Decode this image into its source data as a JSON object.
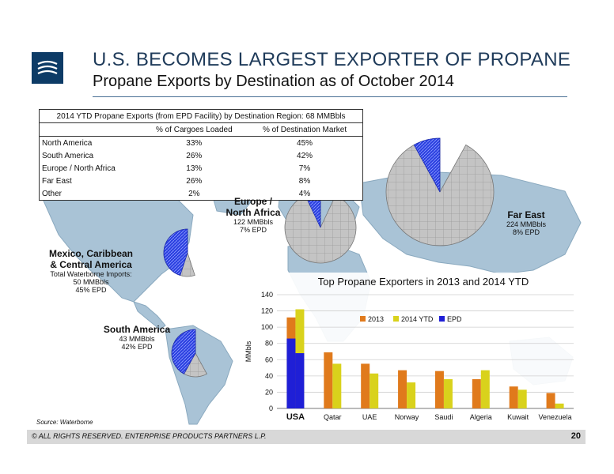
{
  "slide": {
    "title": "U.S. BECOMES LARGEST EXPORTER OF PROPANE",
    "subtitle": "Propane Exports by Destination as of October 2014",
    "source": "Source:  Waterborne",
    "footer": "© ALL RIGHTS RESERVED. ENTERPRISE PRODUCTS PARTNERS L.P.",
    "page_number": "20"
  },
  "table": {
    "title": "2014 YTD Propane Exports (from EPD Facility) by Destination Region:  68 MMBbls",
    "col1": "% of Cargoes Loaded",
    "col2": "% of Destination Market",
    "rows": [
      {
        "region": "North America",
        "cargo": "33%",
        "market": "45%"
      },
      {
        "region": "South America",
        "cargo": "26%",
        "market": "42%"
      },
      {
        "region": "Europe / North Africa",
        "cargo": "13%",
        "market": "7%"
      },
      {
        "region": "Far East",
        "cargo": "26%",
        "market": "8%"
      },
      {
        "region": "Other",
        "cargo": "2%",
        "market": "4%"
      }
    ]
  },
  "map_labels": {
    "mexico": {
      "name_line1": "Mexico, Caribbean",
      "name_line2": "& Central America",
      "detail1": "Total Waterborne Imports:",
      "detail2": "50 MMBbls",
      "detail3": "45% EPD"
    },
    "south_america": {
      "name": "South America",
      "detail1": "43 MMBbls",
      "detail2": "42% EPD"
    },
    "europe": {
      "name_line1": "Europe /",
      "name_line2": "North Africa",
      "detail1": "122 MMBbls",
      "detail2": "7% EPD"
    },
    "far_east": {
      "name": "Far East",
      "detail1": "224 MMBbls",
      "detail2": "8% EPD"
    }
  },
  "colors": {
    "c2013": "#e07a1c",
    "c2014": "#d9d21c",
    "cEPD": "#1f1fd6",
    "map_ocean": "#ffffff",
    "map_land": "#a9c3d6",
    "pie_base": "#c0c0c0",
    "pie_epd": "#2b3fe0"
  },
  "chart_data": [
    {
      "type": "bar",
      "title": "Top Propane Exporters in 2013 and 2014 YTD",
      "ylabel": "MMbls",
      "ylim": [
        0,
        140
      ],
      "yticks": [
        0,
        20,
        40,
        60,
        80,
        100,
        120,
        140
      ],
      "legend": {
        "position": "top-right",
        "labels": [
          "2013",
          "2014 YTD",
          "EPD"
        ]
      },
      "categories": [
        "USA",
        "Qatar",
        "UAE",
        "Norway",
        "Saudi",
        "Algeria",
        "Kuwait",
        "Venezuela"
      ],
      "series": [
        {
          "name": "2013",
          "values": [
            112,
            69,
            55,
            47,
            46,
            36,
            27,
            19
          ],
          "epd": [
            86,
            null,
            null,
            null,
            null,
            null,
            null,
            null
          ]
        },
        {
          "name": "2014 YTD",
          "values": [
            122,
            55,
            43,
            32,
            36,
            47,
            23,
            6
          ],
          "epd": [
            68,
            null,
            null,
            null,
            null,
            null,
            null,
            null
          ]
        }
      ]
    },
    {
      "type": "pie",
      "region": "Mexico, Caribbean & Central America",
      "values": [
        45,
        55
      ],
      "labels": [
        "EPD",
        "Other"
      ]
    },
    {
      "type": "pie",
      "region": "South America",
      "values": [
        42,
        58
      ],
      "labels": [
        "EPD",
        "Other"
      ]
    },
    {
      "type": "pie",
      "region": "Europe / North Africa",
      "values": [
        7,
        93
      ],
      "labels": [
        "EPD",
        "Other"
      ]
    },
    {
      "type": "pie",
      "region": "Far East",
      "values": [
        8,
        92
      ],
      "labels": [
        "EPD",
        "Other"
      ]
    }
  ]
}
